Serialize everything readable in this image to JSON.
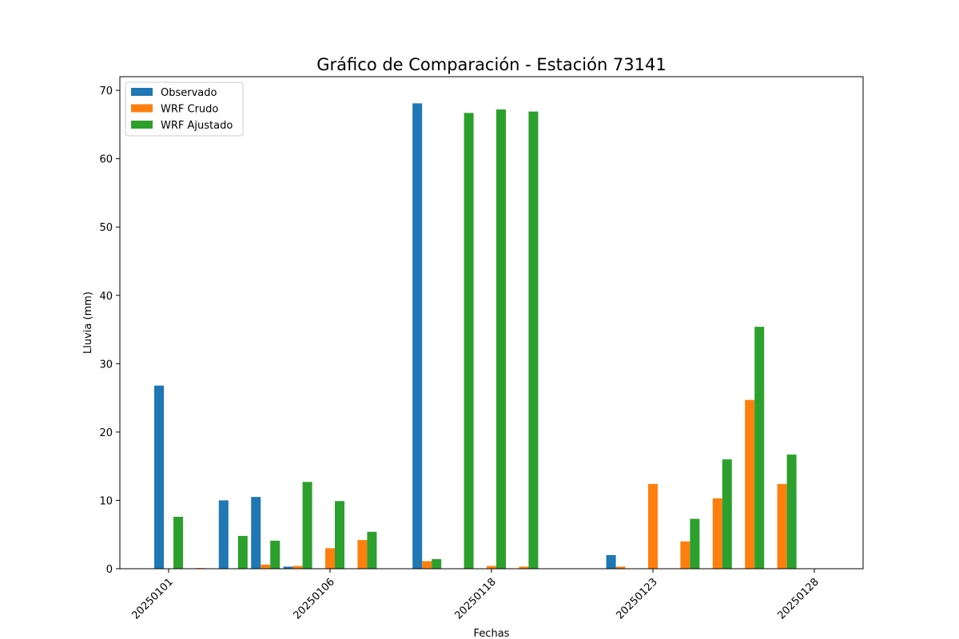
{
  "chart_data": {
    "type": "bar",
    "title": "Gráfico de Comparación - Estación 73141",
    "xlabel": "Fechas",
    "ylabel": "Lluvia (mm)",
    "ylim": [
      0,
      72
    ],
    "yticks": [
      0,
      10,
      20,
      30,
      40,
      50,
      60,
      70
    ],
    "x_tick_labels": [
      "20250101",
      "20250106",
      "20250118",
      "20250123",
      "20250128"
    ],
    "groups": 22,
    "legend_position": "upper-left",
    "grid": false,
    "series": [
      {
        "name": "Observado",
        "color": "#1f77b4",
        "values": [
          26.8,
          0,
          10.0,
          10.5,
          0.3,
          0,
          0,
          0,
          68.1,
          0,
          0,
          0,
          0,
          0,
          2.0,
          0,
          0,
          0,
          0,
          0,
          0,
          0
        ]
      },
      {
        "name": "WRF Crudo",
        "color": "#ff7f0e",
        "values": [
          0,
          0.1,
          0,
          0.6,
          0.4,
          3.0,
          4.2,
          0,
          1.1,
          0,
          0.4,
          0.3,
          0,
          0,
          0.3,
          12.4,
          4.0,
          10.3,
          24.7,
          12.4,
          0,
          0
        ]
      },
      {
        "name": "WRF Ajustado",
        "color": "#2ca02c",
        "values": [
          7.6,
          0,
          4.8,
          4.1,
          12.7,
          9.9,
          5.4,
          0,
          1.4,
          66.7,
          67.2,
          66.9,
          0,
          0,
          0,
          0,
          7.3,
          16.0,
          35.4,
          16.7,
          0,
          0
        ]
      }
    ]
  }
}
